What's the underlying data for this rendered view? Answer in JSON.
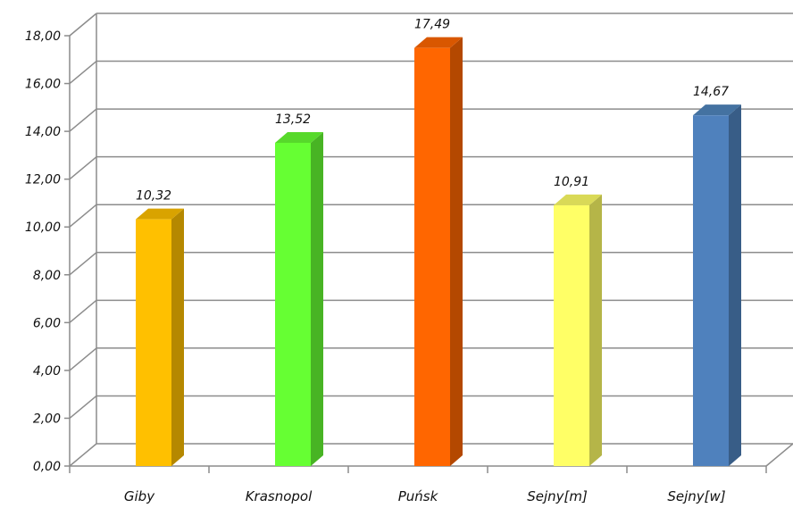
{
  "chart_data": {
    "type": "bar",
    "title": "",
    "xlabel": "",
    "ylabel": "",
    "categories": [
      "Giby",
      "Krasnopol",
      "Puńsk",
      "Sejny[m]",
      "Sejny[w]"
    ],
    "values": [
      10.32,
      13.52,
      17.49,
      10.91,
      14.67
    ],
    "value_labels": [
      "10,32",
      "13,52",
      "17,49",
      "10,91",
      "14,67"
    ],
    "ylim": [
      0,
      18
    ],
    "ytick_labels": [
      "0,00",
      "2,00",
      "4,00",
      "6,00",
      "8,00",
      "10,00",
      "12,00",
      "14,00",
      "16,00",
      "18,00"
    ],
    "grid": true,
    "legend": "none",
    "three_d": true,
    "colors": {
      "front": [
        "#FFC000",
        "#66FF33",
        "#FF6600",
        "#FFFF66",
        "#4F81BD"
      ],
      "side": [
        "#B58800",
        "#48B424",
        "#B44800",
        "#B5B548",
        "#385D87"
      ],
      "top": [
        "#D9A300",
        "#57D92B",
        "#D95700",
        "#D9D957",
        "#4472A1"
      ],
      "grid": "#8c8c8c",
      "axis": "#8c8c8c"
    }
  }
}
